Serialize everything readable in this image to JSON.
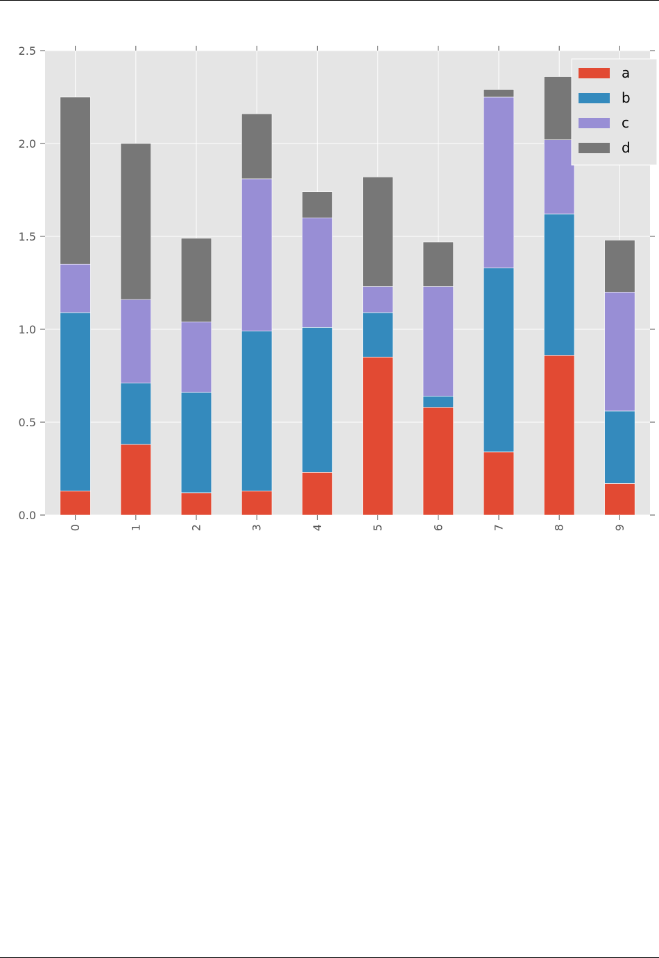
{
  "chart_data": {
    "type": "bar",
    "stacked": true,
    "categories": [
      "0",
      "1",
      "2",
      "3",
      "4",
      "5",
      "6",
      "7",
      "8",
      "9"
    ],
    "series": [
      {
        "name": "a",
        "color": "#E24A33",
        "values": [
          0.13,
          0.38,
          0.12,
          0.13,
          0.23,
          0.85,
          0.58,
          0.34,
          0.86,
          0.17
        ]
      },
      {
        "name": "b",
        "color": "#348ABD",
        "values": [
          0.96,
          0.33,
          0.54,
          0.86,
          0.78,
          0.24,
          0.06,
          0.99,
          0.76,
          0.39
        ]
      },
      {
        "name": "c",
        "color": "#988ED5",
        "values": [
          0.26,
          0.45,
          0.38,
          0.82,
          0.59,
          0.14,
          0.59,
          0.92,
          0.4,
          0.64
        ]
      },
      {
        "name": "d",
        "color": "#777777",
        "values": [
          0.9,
          0.84,
          0.45,
          0.35,
          0.14,
          0.59,
          0.24,
          0.04,
          0.34,
          0.28
        ]
      }
    ],
    "ylim": [
      0,
      2.5
    ],
    "yticks": [
      0.0,
      0.5,
      1.0,
      1.5,
      2.0,
      2.5
    ],
    "ytick_labels": [
      "0.0",
      "0.5",
      "1.0",
      "1.5",
      "2.0",
      "2.5"
    ],
    "grid": true,
    "legend_position": "top-right",
    "xtick_rotation": "vertical",
    "title": "",
    "xlabel": "",
    "ylabel": "",
    "colors": {
      "plot_background": "#E5E5E5",
      "grid": "#FFFFFF",
      "tick_text": "#555555"
    }
  }
}
